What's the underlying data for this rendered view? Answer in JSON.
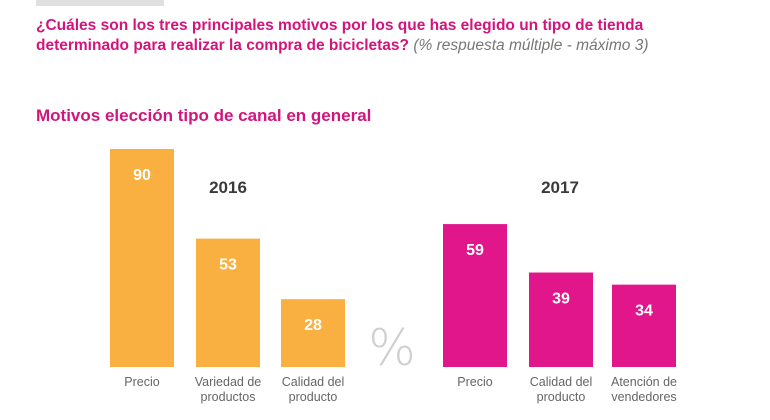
{
  "question": {
    "text": "¿Cuáles son los tres principales motivos por los que has elegido un tipo de tienda determinado  para realizar la compra de bicicletas?",
    "note": "(% respuesta múltiple - máximo 3)"
  },
  "section_title": "Motivos elección tipo de canal en general",
  "unit_label": "%",
  "colors": {
    "accent": "#d4147d",
    "bar_2016": "#f9b040",
    "bar_2017": "#e0168a"
  },
  "chart_data": [
    {
      "type": "bar",
      "title": "2016",
      "categories": [
        [
          "Precio"
        ],
        [
          "Variedad de",
          "productos"
        ],
        [
          "Calidad del",
          "producto"
        ]
      ],
      "values": [
        90,
        53,
        28
      ],
      "color": "#f9b040",
      "ylim": [
        0,
        90
      ]
    },
    {
      "type": "bar",
      "title": "2017",
      "categories": [
        [
          "Precio"
        ],
        [
          "Calidad del",
          "producto"
        ],
        [
          "Atención de",
          "vendedores"
        ]
      ],
      "values": [
        59,
        39,
        34
      ],
      "color": "#e0168a",
      "ylim": [
        0,
        90
      ]
    }
  ]
}
